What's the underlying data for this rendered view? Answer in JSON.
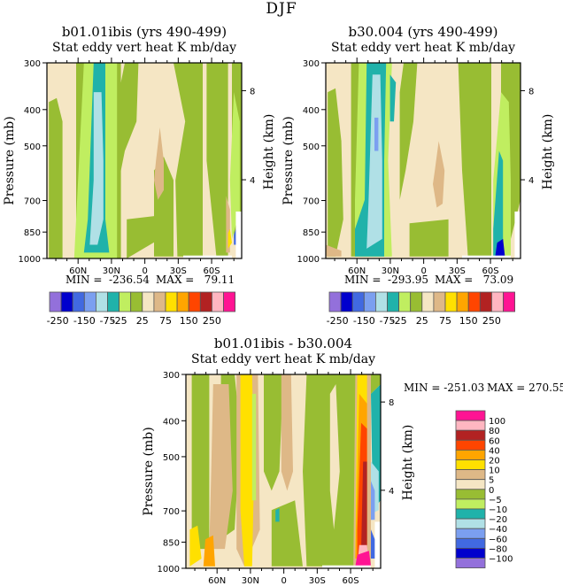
{
  "figure": {
    "title": "DJF"
  },
  "chart_data": [
    {
      "type": "heatmap",
      "id": "panel1",
      "title": "b01.01ibis (yrs 490-499)",
      "subtitle": "Stat eddy vert heat   K mb/day",
      "xlabel": "",
      "ylabel": "Pressure (mb)",
      "ylabel_right": "Height (km)",
      "x_ticks": [
        "60N",
        "30N",
        "0",
        "30S",
        "60S"
      ],
      "x_tick_values": [
        60,
        30,
        0,
        -30,
        -60
      ],
      "xlim": [
        88,
        -87
      ],
      "y_ticks": [
        "300",
        "400",
        "500",
        "700",
        "850",
        "1000"
      ],
      "y_tick_values": [
        300,
        400,
        500,
        700,
        850,
        1000
      ],
      "ylim": [
        300,
        1000
      ],
      "y_scale": "log",
      "right_ticks": [
        "8",
        "4"
      ],
      "right_tick_pressures": [
        356,
        616
      ],
      "min_label": "MIN =  -236.54",
      "max_label": "MAX =   79.11",
      "min": -236.54,
      "max": 79.11,
      "colorbar": {
        "orientation": "horizontal",
        "labels": [
          "-250",
          "-150",
          "-75",
          "-25",
          "25",
          "75",
          "150",
          "250"
        ],
        "levels": [
          -250,
          -200,
          -150,
          -100,
          -75,
          -50,
          -25,
          0,
          25,
          50,
          75,
          100,
          150,
          200,
          250
        ],
        "colors": [
          "#9370db",
          "#0000cd",
          "#4169e1",
          "#7b9ff0",
          "#b0e0e6",
          "#20b2aa",
          "#c0ee60",
          "#98bd33",
          "#f5e6c4",
          "#deb887",
          "#ffe000",
          "#ffa500",
          "#ff4500",
          "#b22222",
          "#ffb6c1",
          "#ff1493"
        ]
      }
    },
    {
      "type": "heatmap",
      "id": "panel2",
      "title": "b30.004 (yrs 490-499)",
      "subtitle": "Stat eddy vert heat   K mb/day",
      "xlabel": "",
      "ylabel": "Pressure (mb)",
      "ylabel_right": "Height (km)",
      "x_ticks": [
        "60N",
        "30N",
        "0",
        "30S",
        "60S"
      ],
      "x_tick_values": [
        60,
        30,
        0,
        -30,
        -60
      ],
      "xlim": [
        88,
        -87
      ],
      "y_ticks": [
        "300",
        "400",
        "500",
        "700",
        "850",
        "1000"
      ],
      "y_tick_values": [
        300,
        400,
        500,
        700,
        850,
        1000
      ],
      "ylim": [
        300,
        1000
      ],
      "y_scale": "log",
      "right_ticks": [
        "8",
        "4"
      ],
      "right_tick_pressures": [
        356,
        616
      ],
      "min_label": "MIN =  -293.95",
      "max_label": "MAX =   73.09",
      "min": -293.95,
      "max": 73.09,
      "colorbar": {
        "orientation": "horizontal",
        "labels": [
          "-250",
          "-150",
          "-75",
          "-25",
          "25",
          "75",
          "150",
          "250"
        ],
        "levels": [
          -250,
          -200,
          -150,
          -100,
          -75,
          -50,
          -25,
          0,
          25,
          50,
          75,
          100,
          150,
          200,
          250
        ],
        "colors": [
          "#9370db",
          "#0000cd",
          "#4169e1",
          "#7b9ff0",
          "#b0e0e6",
          "#20b2aa",
          "#c0ee60",
          "#98bd33",
          "#f5e6c4",
          "#deb887",
          "#ffe000",
          "#ffa500",
          "#ff4500",
          "#b22222",
          "#ffb6c1",
          "#ff1493"
        ]
      }
    },
    {
      "type": "heatmap",
      "id": "panel3",
      "title": "b01.01ibis - b30.004",
      "subtitle": "Stat eddy vert heat   K mb/day",
      "xlabel": "",
      "ylabel": "Pressure (mb)",
      "ylabel_right": "Height (km)",
      "x_ticks": [
        "60N",
        "30N",
        "0",
        "30S",
        "60S"
      ],
      "x_tick_values": [
        60,
        30,
        0,
        -30,
        -60
      ],
      "xlim": [
        88,
        -87
      ],
      "y_ticks": [
        "300",
        "400",
        "500",
        "700",
        "850",
        "1000"
      ],
      "y_tick_values": [
        300,
        400,
        500,
        700,
        850,
        1000
      ],
      "ylim": [
        300,
        1000
      ],
      "y_scale": "log",
      "right_ticks": [
        "8",
        "4"
      ],
      "right_tick_pressures": [
        356,
        616
      ],
      "min_label": "MIN = -251.03",
      "max_label": "MAX = 270.55",
      "min": -251.03,
      "max": 270.55,
      "colorbar": {
        "orientation": "vertical",
        "labels": [
          "100",
          "80",
          "60",
          "40",
          "20",
          "10",
          "5",
          "0",
          "-5",
          "-10",
          "-20",
          "-40",
          "-60",
          "-80",
          "-100"
        ],
        "levels": [
          100,
          80,
          60,
          40,
          20,
          10,
          5,
          0,
          -5,
          -10,
          -20,
          -40,
          -60,
          -80,
          -100
        ],
        "colors": [
          "#ff1493",
          "#ffb6c1",
          "#b22222",
          "#ff4500",
          "#ffa500",
          "#ffe000",
          "#deb887",
          "#f5e6c4",
          "#98bd33",
          "#c0ee60",
          "#20b2aa",
          "#b0e0e6",
          "#7b9ff0",
          "#4169e1",
          "#0000cd",
          "#9370db"
        ]
      }
    }
  ]
}
